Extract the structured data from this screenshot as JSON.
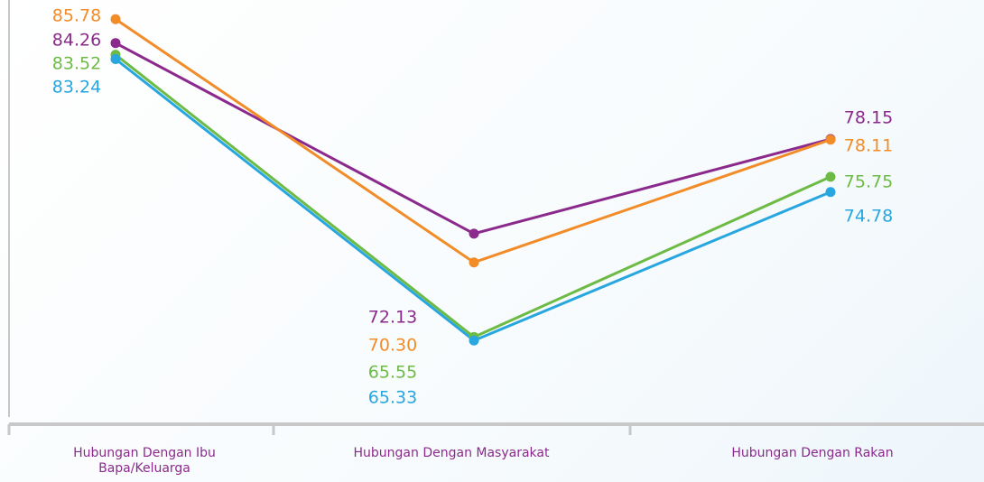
{
  "chart_data": {
    "type": "line",
    "categories": [
      "Hubungan Dengan Ibu Bapa/Keluarga",
      "Hubungan Dengan Masyarakat",
      "Hubungan Dengan Rakan"
    ],
    "series": [
      {
        "color": "#8b2a8c",
        "values": [
          84.26,
          72.13,
          78.15
        ],
        "value_labels": [
          "84.26",
          "72.13",
          "78.15"
        ]
      },
      {
        "color": "#f28c28",
        "values": [
          85.78,
          70.3,
          78.11
        ],
        "value_labels": [
          "85.78",
          "70.30",
          "78.11"
        ]
      },
      {
        "color": "#6dbb45",
        "values": [
          83.52,
          65.55,
          75.75
        ],
        "value_labels": [
          "83.52",
          "65.55",
          "75.75"
        ]
      },
      {
        "color": "#27a6df",
        "values": [
          83.24,
          65.33,
          74.78
        ],
        "value_labels": [
          "83.24",
          "65.33",
          "74.78"
        ]
      }
    ],
    "ylim": [
      60,
      87
    ]
  }
}
